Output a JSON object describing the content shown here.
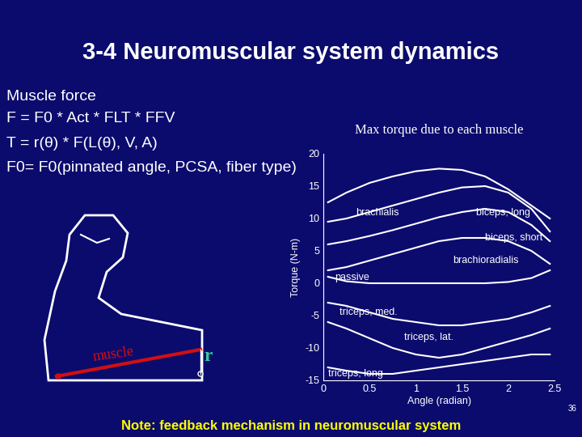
{
  "slide": {
    "title": "3-4 Neuromuscular system dynamics",
    "text_lines": [
      "Muscle force",
      "F = F0 * Act * FLT * FFV",
      "T = r(θ) * F(L(θ), V, A)",
      "F0= F0(pinnated angle, PCSA, fiber type)"
    ],
    "figure_labels": [
      "muscle",
      "r"
    ],
    "note": "Note: feedback mechanism in neuromuscular system",
    "page_number": 36
  },
  "chart_data": {
    "type": "line",
    "title": "Max torque due to each muscle",
    "x_label": "Angle (radian)",
    "y_label": "Torque (N-m)",
    "x": [
      0.05,
      0.25,
      0.5,
      0.75,
      1.0,
      1.25,
      1.5,
      1.75,
      2.0,
      2.25,
      2.45
    ],
    "series": [
      {
        "name": "brachialis",
        "color": "#ffffff",
        "values": [
          12.5,
          14,
          15.5,
          16.5,
          17.3,
          17.7,
          17.5,
          16.5,
          14.5,
          12,
          10
        ]
      },
      {
        "name": "biceps, long",
        "color": "#ffffff",
        "values": [
          9.5,
          10,
          11,
          12,
          13,
          14,
          14.8,
          15,
          14,
          11.5,
          8
        ]
      },
      {
        "name": "biceps, short",
        "color": "#ffffff",
        "values": [
          6,
          6.5,
          7.3,
          8.2,
          9.2,
          10.2,
          11,
          11.5,
          11,
          9,
          6.5
        ]
      },
      {
        "name": "brachioradialis",
        "color": "#ffffff",
        "values": [
          2,
          2.5,
          3.5,
          4.5,
          5.5,
          6.5,
          7,
          7,
          6.5,
          5,
          3
        ]
      },
      {
        "name": "passive",
        "color": "#ffffff",
        "values": [
          1,
          0.3,
          0,
          0,
          0,
          0,
          0,
          0,
          0.2,
          0.8,
          2
        ]
      },
      {
        "name": "triceps, med.",
        "color": "#ffffff",
        "values": [
          -3,
          -3.5,
          -4.5,
          -5.5,
          -6,
          -6.5,
          -6.5,
          -6,
          -5.5,
          -4.5,
          -3.5
        ]
      },
      {
        "name": "triceps, lat.",
        "color": "#ffffff",
        "values": [
          -6,
          -7,
          -8.5,
          -10,
          -11,
          -11.5,
          -11,
          -10,
          -9,
          -8,
          -7
        ]
      },
      {
        "name": "triceps, long",
        "color": "#ffffff",
        "values": [
          -13,
          -13.5,
          -14,
          -14,
          -13.5,
          -13,
          -12.5,
          -12,
          -11.5,
          -11,
          -11
        ]
      }
    ],
    "xlim": [
      0,
      2.5
    ],
    "ylim": [
      -15,
      20
    ],
    "xticks": [
      0,
      0.5,
      1,
      1.5,
      2,
      2.5
    ],
    "yticks": [
      -15,
      -10,
      -5,
      0,
      5,
      10,
      15,
      20
    ]
  }
}
